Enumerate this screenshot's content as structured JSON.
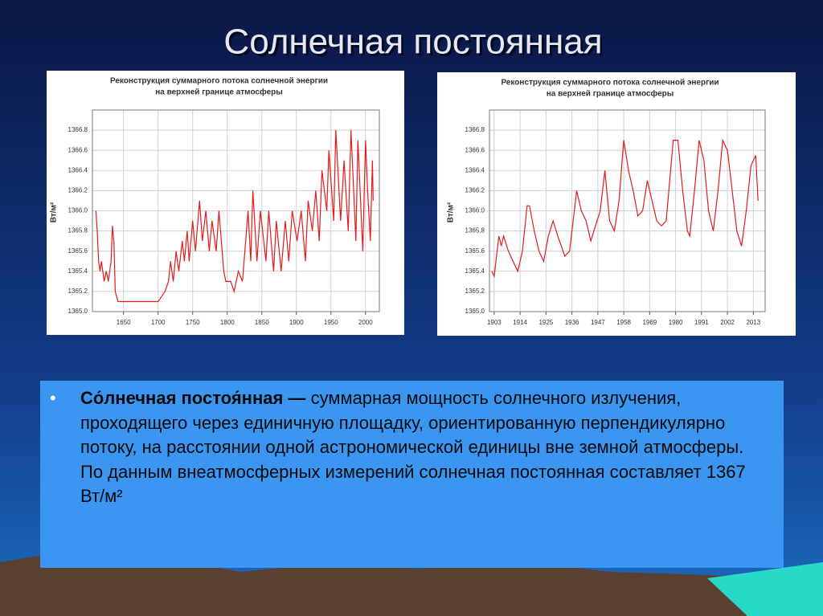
{
  "title": "Солнечная постоянная",
  "bullet": {
    "term": "Со́лнечная постоя́нная —",
    "text": "суммарная мощность солнечного излучения, проходящего через единичную площадку, ориентированную перпендикулярно потоку, на расстоянии одной астрономической единицы вне земной атмосферы. По данным внеатмосферных измерений солнечная постоянная составляет 1367 Вт/м²"
  },
  "chart_data": [
    {
      "type": "line",
      "title": [
        "Реконструкция суммарного потока солнечной энергии",
        "на верхней границе атмосферы"
      ],
      "ylabel": "Вт/м²",
      "grid": true,
      "x": [
        1610,
        1612,
        1614,
        1616,
        1618,
        1620,
        1622,
        1625,
        1628,
        1632,
        1634,
        1636,
        1638,
        1642,
        1648,
        1700,
        1705,
        1710,
        1715,
        1718,
        1722,
        1726,
        1730,
        1735,
        1738,
        1742,
        1745,
        1750,
        1754,
        1760,
        1764,
        1769,
        1774,
        1778,
        1784,
        1788,
        1795,
        1798,
        1805,
        1810,
        1816,
        1822,
        1830,
        1834,
        1837,
        1843,
        1848,
        1856,
        1860,
        1867,
        1871,
        1878,
        1884,
        1889,
        1894,
        1901,
        1907,
        1913,
        1917,
        1923,
        1928,
        1933,
        1937,
        1944,
        1947,
        1954,
        1957,
        1964,
        1969,
        1975,
        1979,
        1986,
        1989,
        1996,
        2000,
        2003,
        2007,
        2010,
        2011
      ],
      "series": [
        {
          "color": "#e41a1c",
          "values": [
            1366.0,
            1365.8,
            1365.5,
            1365.4,
            1365.5,
            1365.4,
            1365.3,
            1365.4,
            1365.3,
            1365.5,
            1365.85,
            1365.7,
            1365.2,
            1365.1,
            1365.1,
            1365.1,
            1365.15,
            1365.2,
            1365.3,
            1365.5,
            1365.3,
            1365.6,
            1365.4,
            1365.7,
            1365.5,
            1365.8,
            1365.5,
            1365.9,
            1365.6,
            1366.1,
            1365.7,
            1366.0,
            1365.6,
            1365.9,
            1365.6,
            1366.0,
            1365.4,
            1365.3,
            1365.3,
            1365.2,
            1365.4,
            1365.3,
            1366.0,
            1365.5,
            1366.2,
            1365.5,
            1366.0,
            1365.5,
            1366.0,
            1365.4,
            1365.9,
            1365.4,
            1365.9,
            1365.5,
            1366.0,
            1365.7,
            1366.0,
            1365.5,
            1366.1,
            1365.8,
            1366.2,
            1365.7,
            1366.4,
            1366.0,
            1366.6,
            1365.9,
            1366.8,
            1365.9,
            1366.5,
            1365.8,
            1366.8,
            1365.7,
            1366.7,
            1365.6,
            1366.7,
            1366.2,
            1365.7,
            1366.5,
            1366.1
          ]
        }
      ],
      "xlim": [
        1605,
        2020
      ],
      "xticks": [
        1650,
        1700,
        1750,
        1800,
        1850,
        1900,
        1950,
        2000
      ],
      "ylim": [
        1365,
        1367
      ],
      "yticks": [
        {
          "value": 1365,
          "label": "1365.0"
        },
        1365.2,
        1365.4,
        1365.6,
        1365.8,
        {
          "value": 1366,
          "label": "1366.0"
        },
        1366.2,
        1366.4,
        1366.6,
        1366.8
      ]
    },
    {
      "type": "line",
      "title": [
        "Реконструкция суммарного потока солнечной энергии",
        "на верхней границе атмосферы"
      ],
      "ylabel": "Вт/м²",
      "grid": true,
      "x": [
        1902,
        1903,
        1905,
        1906,
        1907,
        1909,
        1912,
        1913,
        1915,
        1917,
        1918,
        1920,
        1922,
        1924,
        1926,
        1928,
        1930,
        1933,
        1935,
        1938,
        1940,
        1942,
        1944,
        1946,
        1948,
        1950,
        1952,
        1954,
        1956,
        1958,
        1960,
        1962,
        1964,
        1966,
        1968,
        1970,
        1972,
        1974,
        1976,
        1979,
        1981,
        1983,
        1985,
        1986,
        1988,
        1990,
        1992,
        1994,
        1996,
        1998,
        2000,
        2002,
        2004,
        2006,
        2008,
        2010,
        2012,
        2014,
        2015
      ],
      "series": [
        {
          "color": "#e41a1c",
          "values": [
            1365.4,
            1365.35,
            1365.75,
            1365.65,
            1365.75,
            1365.6,
            1365.45,
            1365.4,
            1365.6,
            1366.05,
            1366.05,
            1365.8,
            1365.6,
            1365.5,
            1365.75,
            1365.9,
            1365.75,
            1365.55,
            1365.6,
            1366.2,
            1366.0,
            1365.9,
            1365.7,
            1365.85,
            1366.0,
            1366.4,
            1365.9,
            1365.8,
            1366.1,
            1366.7,
            1366.4,
            1366.2,
            1365.95,
            1366.0,
            1366.3,
            1366.1,
            1365.9,
            1365.85,
            1365.9,
            1366.7,
            1366.7,
            1366.2,
            1365.8,
            1365.75,
            1366.2,
            1366.7,
            1366.5,
            1366.0,
            1365.8,
            1366.2,
            1366.7,
            1366.6,
            1366.2,
            1365.8,
            1365.65,
            1366.0,
            1366.45,
            1366.55,
            1366.1
          ]
        }
      ],
      "xlim": [
        1901,
        2018
      ],
      "xticks": [
        1903,
        1914,
        1925,
        1936,
        1947,
        1958,
        1969,
        1980,
        1991,
        2002,
        2013
      ],
      "ylim": [
        1365,
        1367
      ],
      "yticks": [
        {
          "value": 1365,
          "label": "1365.0"
        },
        1365.2,
        1365.4,
        1365.6,
        1365.8,
        {
          "value": 1366,
          "label": "1366.0"
        },
        1366.2,
        1366.4,
        1366.6,
        1366.8
      ]
    }
  ]
}
